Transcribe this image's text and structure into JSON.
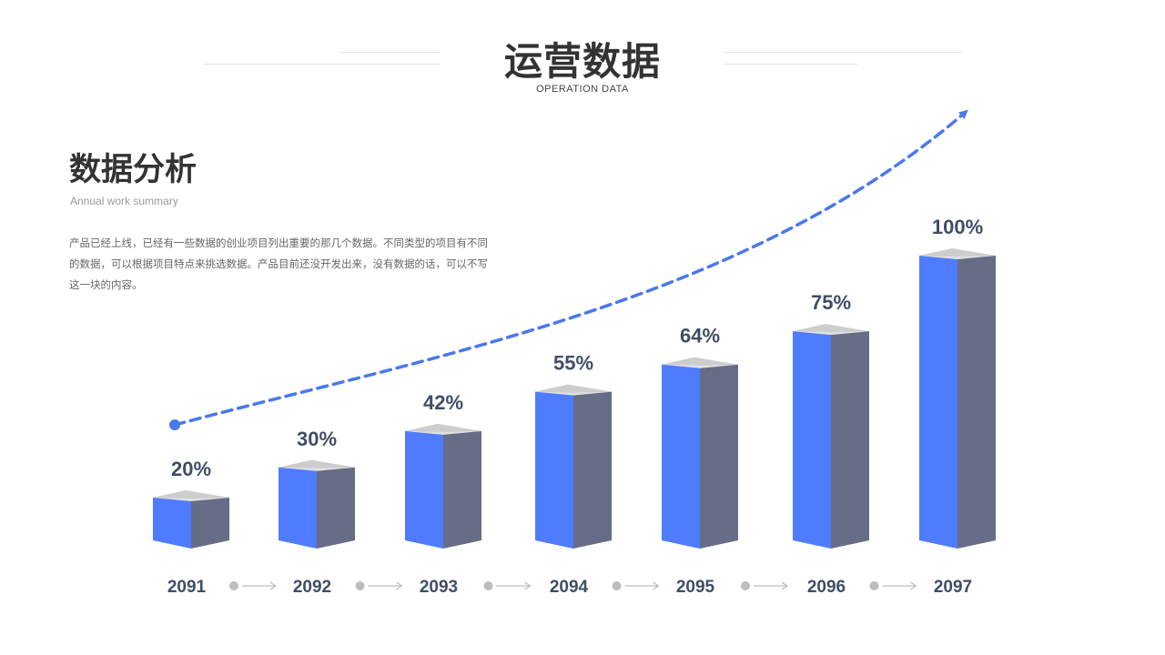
{
  "header": {
    "title": "运营数据",
    "subtitle": "OPERATION DATA"
  },
  "section": {
    "title": "数据分析",
    "subtitle": "Annual work summary",
    "description": "产品已经上线，已经有一些数据的创业项目列出重要的那几个数据。不同类型的项目有不同的数据，可以根据项目特点来挑选数据。产品目前还没开发出来，没有数据的话，可以不写这一块的内容。"
  },
  "colors": {
    "bar_front": "#4f7cff",
    "bar_side": "#676c87",
    "bar_top": "#e0e0e0",
    "bar_top_dark": "#bdbdbd",
    "label": "#3f4d66",
    "trend": "#4a78ec",
    "connector": "#bdbdbd"
  },
  "chart_data": {
    "type": "bar",
    "categories": [
      "2091",
      "2092",
      "2093",
      "2094",
      "2095",
      "2096",
      "2097"
    ],
    "values": [
      20,
      30,
      42,
      55,
      64,
      75,
      100
    ],
    "data_labels": [
      "20%",
      "30%",
      "42%",
      "55%",
      "64%",
      "75%",
      "100%"
    ],
    "title": "",
    "xlabel": "",
    "ylabel": "",
    "ylim": [
      0,
      100
    ],
    "grid": false,
    "style": "3d-columns with upward trend arrow"
  }
}
